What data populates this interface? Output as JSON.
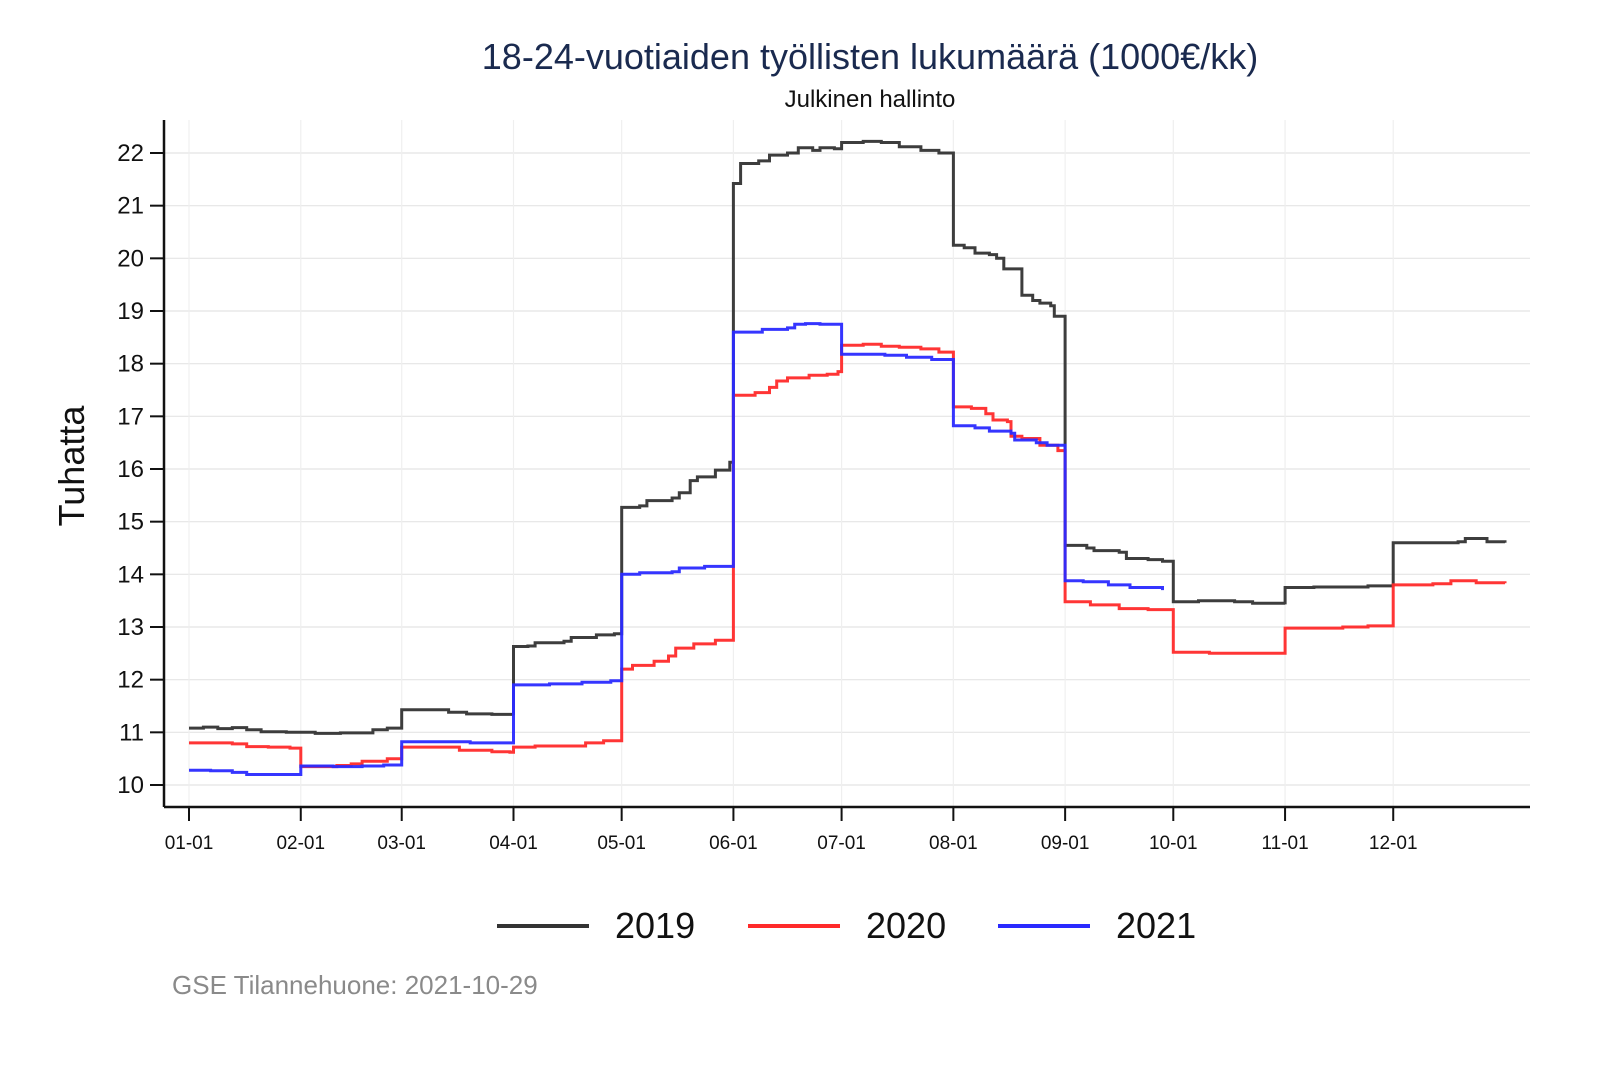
{
  "chart_data": {
    "type": "line",
    "step": true,
    "title": "18-24-vuotiaiden työllisten lukumäärä (1000€/kk)",
    "subtitle": "Julkinen hallinto",
    "ylabel": "Tuhatta",
    "xlabel": "",
    "ylim": [
      9.6,
      22.6
    ],
    "xlim_days": [
      -5,
      375
    ],
    "yticks": [
      10,
      11,
      12,
      13,
      14,
      15,
      16,
      17,
      18,
      19,
      20,
      21,
      22
    ],
    "xticks": [
      {
        "day": 0,
        "label": "01-01"
      },
      {
        "day": 31,
        "label": "02-01"
      },
      {
        "day": 59,
        "label": "03-01"
      },
      {
        "day": 90,
        "label": "04-01"
      },
      {
        "day": 120,
        "label": "05-01"
      },
      {
        "day": 151,
        "label": "06-01"
      },
      {
        "day": 181,
        "label": "07-01"
      },
      {
        "day": 212,
        "label": "08-01"
      },
      {
        "day": 243,
        "label": "09-01"
      },
      {
        "day": 273,
        "label": "10-01"
      },
      {
        "day": 304,
        "label": "11-01"
      },
      {
        "day": 334,
        "label": "12-01"
      }
    ],
    "grid": true,
    "legend_position": "bottom",
    "series": [
      {
        "name": "2019",
        "color": "#333333",
        "points": [
          [
            0,
            11.08
          ],
          [
            4,
            11.1
          ],
          [
            8,
            11.07
          ],
          [
            12,
            11.09
          ],
          [
            16,
            11.05
          ],
          [
            20,
            11.01
          ],
          [
            27,
            11.0
          ],
          [
            31,
            11.0
          ],
          [
            35,
            10.98
          ],
          [
            42,
            10.99
          ],
          [
            47,
            10.99
          ],
          [
            51,
            11.05
          ],
          [
            55,
            11.08
          ],
          [
            59,
            11.09
          ],
          [
            59,
            11.43
          ],
          [
            66,
            11.43
          ],
          [
            72,
            11.38
          ],
          [
            77,
            11.35
          ],
          [
            84,
            11.34
          ],
          [
            90,
            11.33
          ],
          [
            90,
            12.63
          ],
          [
            94,
            12.64
          ],
          [
            96,
            12.7
          ],
          [
            104,
            12.73
          ],
          [
            106,
            12.8
          ],
          [
            113,
            12.85
          ],
          [
            118,
            12.87
          ],
          [
            120,
            12.95
          ],
          [
            120,
            15.27
          ],
          [
            125,
            15.3
          ],
          [
            127,
            15.4
          ],
          [
            134,
            15.45
          ],
          [
            136,
            15.55
          ],
          [
            139,
            15.78
          ],
          [
            141,
            15.85
          ],
          [
            146,
            15.98
          ],
          [
            150,
            16.13
          ],
          [
            151,
            16.13
          ],
          [
            151,
            21.42
          ],
          [
            153,
            21.8
          ],
          [
            158,
            21.85
          ],
          [
            161,
            21.96
          ],
          [
            166,
            22.0
          ],
          [
            169,
            22.1
          ],
          [
            173,
            22.05
          ],
          [
            175,
            22.1
          ],
          [
            179,
            22.08
          ],
          [
            181,
            22.2
          ],
          [
            187,
            22.22
          ],
          [
            192,
            22.2
          ],
          [
            197,
            22.12
          ],
          [
            203,
            22.05
          ],
          [
            208,
            22.0
          ],
          [
            212,
            21.93
          ],
          [
            212,
            20.25
          ],
          [
            215,
            20.2
          ],
          [
            218,
            20.1
          ],
          [
            222,
            20.07
          ],
          [
            224,
            20.0
          ],
          [
            226,
            19.8
          ],
          [
            230,
            19.8
          ],
          [
            231,
            19.3
          ],
          [
            234,
            19.2
          ],
          [
            236,
            19.15
          ],
          [
            239,
            19.1
          ],
          [
            240,
            18.9
          ],
          [
            243,
            18.85
          ],
          [
            243,
            14.55
          ],
          [
            249,
            14.5
          ],
          [
            251,
            14.45
          ],
          [
            258,
            14.42
          ],
          [
            260,
            14.3
          ],
          [
            266,
            14.28
          ],
          [
            270,
            14.25
          ],
          [
            273,
            14.25
          ],
          [
            273,
            13.48
          ],
          [
            280,
            13.5
          ],
          [
            287,
            13.5
          ],
          [
            290,
            13.48
          ],
          [
            295,
            13.45
          ],
          [
            304,
            13.43
          ],
          [
            304,
            13.75
          ],
          [
            312,
            13.76
          ],
          [
            320,
            13.76
          ],
          [
            327,
            13.78
          ],
          [
            334,
            13.77
          ],
          [
            334,
            14.6
          ],
          [
            345,
            14.6
          ],
          [
            352,
            14.62
          ],
          [
            354,
            14.68
          ],
          [
            360,
            14.62
          ],
          [
            365,
            14.6
          ]
        ]
      },
      {
        "name": "2020",
        "color": "#ff2a2a",
        "points": [
          [
            0,
            10.8
          ],
          [
            6,
            10.8
          ],
          [
            12,
            10.78
          ],
          [
            16,
            10.73
          ],
          [
            22,
            10.72
          ],
          [
            28,
            10.7
          ],
          [
            31,
            10.68
          ],
          [
            31,
            10.35
          ],
          [
            41,
            10.37
          ],
          [
            45,
            10.4
          ],
          [
            48,
            10.45
          ],
          [
            55,
            10.5
          ],
          [
            59,
            10.5
          ],
          [
            59,
            10.72
          ],
          [
            68,
            10.72
          ],
          [
            75,
            10.66
          ],
          [
            84,
            10.63
          ],
          [
            89,
            10.62
          ],
          [
            90,
            10.62
          ],
          [
            90,
            10.72
          ],
          [
            96,
            10.74
          ],
          [
            105,
            10.74
          ],
          [
            110,
            10.8
          ],
          [
            115,
            10.84
          ],
          [
            120,
            10.87
          ],
          [
            120,
            12.2
          ],
          [
            123,
            12.27
          ],
          [
            129,
            12.35
          ],
          [
            133,
            12.45
          ],
          [
            135,
            12.6
          ],
          [
            140,
            12.68
          ],
          [
            146,
            12.75
          ],
          [
            151,
            12.78
          ],
          [
            151,
            17.4
          ],
          [
            157,
            17.45
          ],
          [
            161,
            17.55
          ],
          [
            163,
            17.67
          ],
          [
            166,
            17.73
          ],
          [
            172,
            17.78
          ],
          [
            177,
            17.8
          ],
          [
            180,
            17.85
          ],
          [
            181,
            17.85
          ],
          [
            181,
            18.35
          ],
          [
            187,
            18.37
          ],
          [
            192,
            18.33
          ],
          [
            197,
            18.31
          ],
          [
            203,
            18.28
          ],
          [
            208,
            18.22
          ],
          [
            212,
            18.2
          ],
          [
            212,
            17.18
          ],
          [
            217,
            17.15
          ],
          [
            221,
            17.05
          ],
          [
            223,
            16.93
          ],
          [
            227,
            16.9
          ],
          [
            228,
            16.62
          ],
          [
            231,
            16.58
          ],
          [
            236,
            16.45
          ],
          [
            241,
            16.35
          ],
          [
            243,
            16.3
          ],
          [
            243,
            13.48
          ],
          [
            250,
            13.42
          ],
          [
            258,
            13.35
          ],
          [
            266,
            13.33
          ],
          [
            273,
            13.3
          ],
          [
            273,
            12.52
          ],
          [
            283,
            12.5
          ],
          [
            294,
            12.5
          ],
          [
            304,
            12.5
          ],
          [
            304,
            12.98
          ],
          [
            313,
            12.98
          ],
          [
            320,
            13.0
          ],
          [
            327,
            13.02
          ],
          [
            334,
            13.02
          ],
          [
            334,
            13.8
          ],
          [
            345,
            13.82
          ],
          [
            350,
            13.88
          ],
          [
            357,
            13.84
          ],
          [
            365,
            13.83
          ]
        ]
      },
      {
        "name": "2021",
        "color": "#2a2aff",
        "points": [
          [
            0,
            10.28
          ],
          [
            6,
            10.27
          ],
          [
            12,
            10.24
          ],
          [
            16,
            10.2
          ],
          [
            25,
            10.2
          ],
          [
            31,
            10.2
          ],
          [
            31,
            10.36
          ],
          [
            40,
            10.35
          ],
          [
            48,
            10.36
          ],
          [
            54,
            10.38
          ],
          [
            59,
            10.38
          ],
          [
            59,
            10.82
          ],
          [
            66,
            10.82
          ],
          [
            78,
            10.8
          ],
          [
            87,
            10.8
          ],
          [
            90,
            10.82
          ],
          [
            90,
            11.9
          ],
          [
            100,
            11.92
          ],
          [
            109,
            11.95
          ],
          [
            117,
            11.98
          ],
          [
            120,
            12.0
          ],
          [
            120,
            14.0
          ],
          [
            125,
            14.03
          ],
          [
            134,
            14.05
          ],
          [
            136,
            14.12
          ],
          [
            143,
            14.15
          ],
          [
            151,
            14.2
          ],
          [
            151,
            18.6
          ],
          [
            157,
            18.6
          ],
          [
            159,
            18.65
          ],
          [
            166,
            18.68
          ],
          [
            168,
            18.75
          ],
          [
            171,
            18.76
          ],
          [
            175,
            18.75
          ],
          [
            181,
            18.75
          ],
          [
            181,
            18.18
          ],
          [
            188,
            18.18
          ],
          [
            193,
            18.16
          ],
          [
            199,
            18.12
          ],
          [
            206,
            18.08
          ],
          [
            212,
            18.05
          ],
          [
            212,
            16.82
          ],
          [
            218,
            16.78
          ],
          [
            222,
            16.72
          ],
          [
            228,
            16.68
          ],
          [
            229,
            16.55
          ],
          [
            235,
            16.5
          ],
          [
            238,
            16.45
          ],
          [
            243,
            16.45
          ],
          [
            243,
            13.88
          ],
          [
            248,
            13.86
          ],
          [
            255,
            13.8
          ],
          [
            261,
            13.75
          ],
          [
            270,
            13.7
          ]
        ]
      }
    ]
  },
  "legend": {
    "items": [
      {
        "label": "2019",
        "color": "#333333"
      },
      {
        "label": "2020",
        "color": "#ff2a2a"
      },
      {
        "label": "2021",
        "color": "#2a2aff"
      }
    ]
  },
  "footer": "GSE Tilannehuone: 2021-10-29"
}
